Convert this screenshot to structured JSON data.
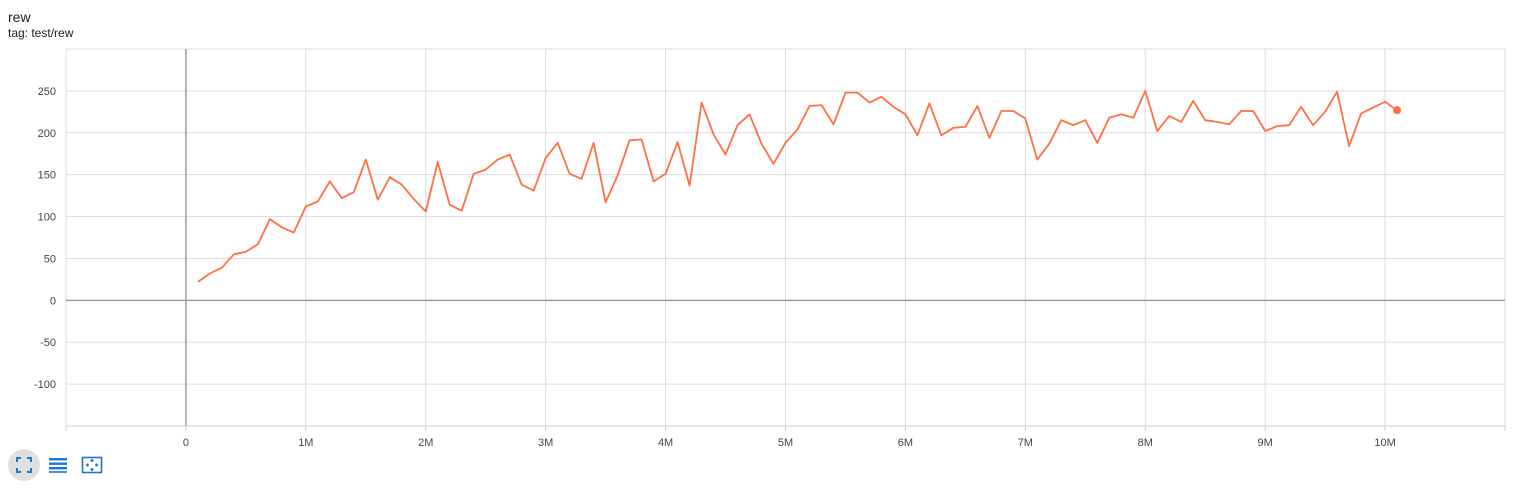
{
  "header": {
    "title": "rew",
    "tag": "tag: test/rew"
  },
  "colors": {
    "series": "#ff7043",
    "grid": "#dddddd",
    "zero_axis": "#9e9e9e",
    "toolbar_icon": "#1976d2"
  },
  "toolbar": {
    "buttons": [
      {
        "name": "expand-chart-button",
        "icon": "fullscreen-icon",
        "active": true
      },
      {
        "name": "toggle-log-scale-button",
        "icon": "lines-icon",
        "active": false
      },
      {
        "name": "fit-domain-button",
        "icon": "fit-domain-icon",
        "active": false
      }
    ]
  },
  "chart_data": {
    "type": "line",
    "title": "rew",
    "subtitle": "tag: test/rew",
    "xlabel": "",
    "ylabel": "",
    "xlim": [
      -1000000,
      11000000
    ],
    "ylim": [
      -150,
      300
    ],
    "xticks": [
      0,
      1000000,
      2000000,
      3000000,
      4000000,
      5000000,
      6000000,
      7000000,
      8000000,
      9000000,
      10000000
    ],
    "xtick_labels": [
      "0",
      "1M",
      "2M",
      "3M",
      "4M",
      "5M",
      "6M",
      "7M",
      "8M",
      "9M",
      "10M"
    ],
    "yticks": [
      -100,
      -50,
      0,
      50,
      100,
      150,
      200,
      250
    ],
    "ytick_labels": [
      "-100",
      "-50",
      "0",
      "50",
      "100",
      "150",
      "200",
      "250"
    ],
    "grid": true,
    "legend": "none",
    "series": [
      {
        "color": "#ff7043",
        "x": [
          100000,
          200000,
          300000,
          400000,
          500000,
          600000,
          700000,
          800000,
          900000,
          1000000,
          1100000,
          1200000,
          1300000,
          1400000,
          1500000,
          1600000,
          1700000,
          1800000,
          1900000,
          2000000,
          2100000,
          2200000,
          2300000,
          2400000,
          2500000,
          2600000,
          2700000,
          2800000,
          2900000,
          3000000,
          3100000,
          3200000,
          3300000,
          3400000,
          3500000,
          3600000,
          3700000,
          3800000,
          3900000,
          4000000,
          4100000,
          4200000,
          4300000,
          4400000,
          4500000,
          4600000,
          4700000,
          4800000,
          4900000,
          5000000,
          5100000,
          5200000,
          5300000,
          5400000,
          5500000,
          5600000,
          5700000,
          5800000,
          5900000,
          6000000,
          6100000,
          6200000,
          6300000,
          6400000,
          6500000,
          6600000,
          6700000,
          6800000,
          6900000,
          7000000,
          7100000,
          7200000,
          7300000,
          7400000,
          7500000,
          7600000,
          7700000,
          7800000,
          7900000,
          8000000,
          8100000,
          8200000,
          8300000,
          8400000,
          8500000,
          8600000,
          8700000,
          8800000,
          8900000,
          9000000,
          9100000,
          9200000,
          9300000,
          9400000,
          9500000,
          9600000,
          9700000,
          9800000,
          9900000,
          10000000,
          10100000
        ],
        "y": [
          22,
          32,
          39,
          55,
          58,
          67,
          97,
          87,
          81,
          112,
          118,
          142,
          122,
          129,
          168,
          120,
          147,
          138,
          121,
          106,
          165,
          114,
          107,
          151,
          156,
          168,
          174,
          138,
          131,
          170,
          188,
          151,
          145,
          188,
          117,
          149,
          191,
          192,
          142,
          151,
          189,
          137,
          236,
          198,
          174,
          209,
          222,
          187,
          163,
          188,
          204,
          232,
          233,
          210,
          248,
          248,
          236,
          243,
          231,
          222,
          197,
          235,
          197,
          206,
          207,
          232,
          194,
          226,
          226,
          217,
          168,
          187,
          215,
          209,
          215,
          188,
          218,
          222,
          218,
          250,
          202,
          220,
          213,
          238,
          215,
          213,
          210,
          226,
          226,
          202,
          208,
          209,
          231,
          209,
          225,
          249,
          184,
          223,
          230,
          237,
          227
        ]
      }
    ]
  }
}
